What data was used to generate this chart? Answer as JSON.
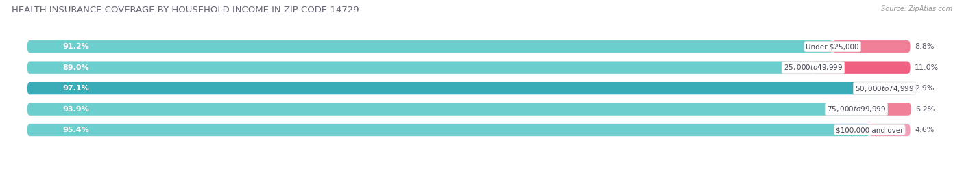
{
  "title": "HEALTH INSURANCE COVERAGE BY HOUSEHOLD INCOME IN ZIP CODE 14729",
  "source": "Source: ZipAtlas.com",
  "categories": [
    "Under $25,000",
    "$25,000 to $49,999",
    "$50,000 to $74,999",
    "$75,000 to $99,999",
    "$100,000 and over"
  ],
  "with_coverage": [
    91.2,
    89.0,
    97.1,
    93.9,
    95.4
  ],
  "without_coverage": [
    8.8,
    11.0,
    2.9,
    6.2,
    4.6
  ],
  "color_with": "#5BC8C8",
  "color_without": "#F08098",
  "color_without_light": "#F5A0B8",
  "bar_bg_color": "#EBEBEB",
  "background_color": "#FFFFFF",
  "title_fontsize": 9.5,
  "bar_label_fontsize": 8,
  "category_fontsize": 7.5,
  "legend_fontsize": 8.5,
  "axis_label_fontsize": 7.5,
  "bar_height": 0.6,
  "xlim": [
    0,
    100
  ]
}
